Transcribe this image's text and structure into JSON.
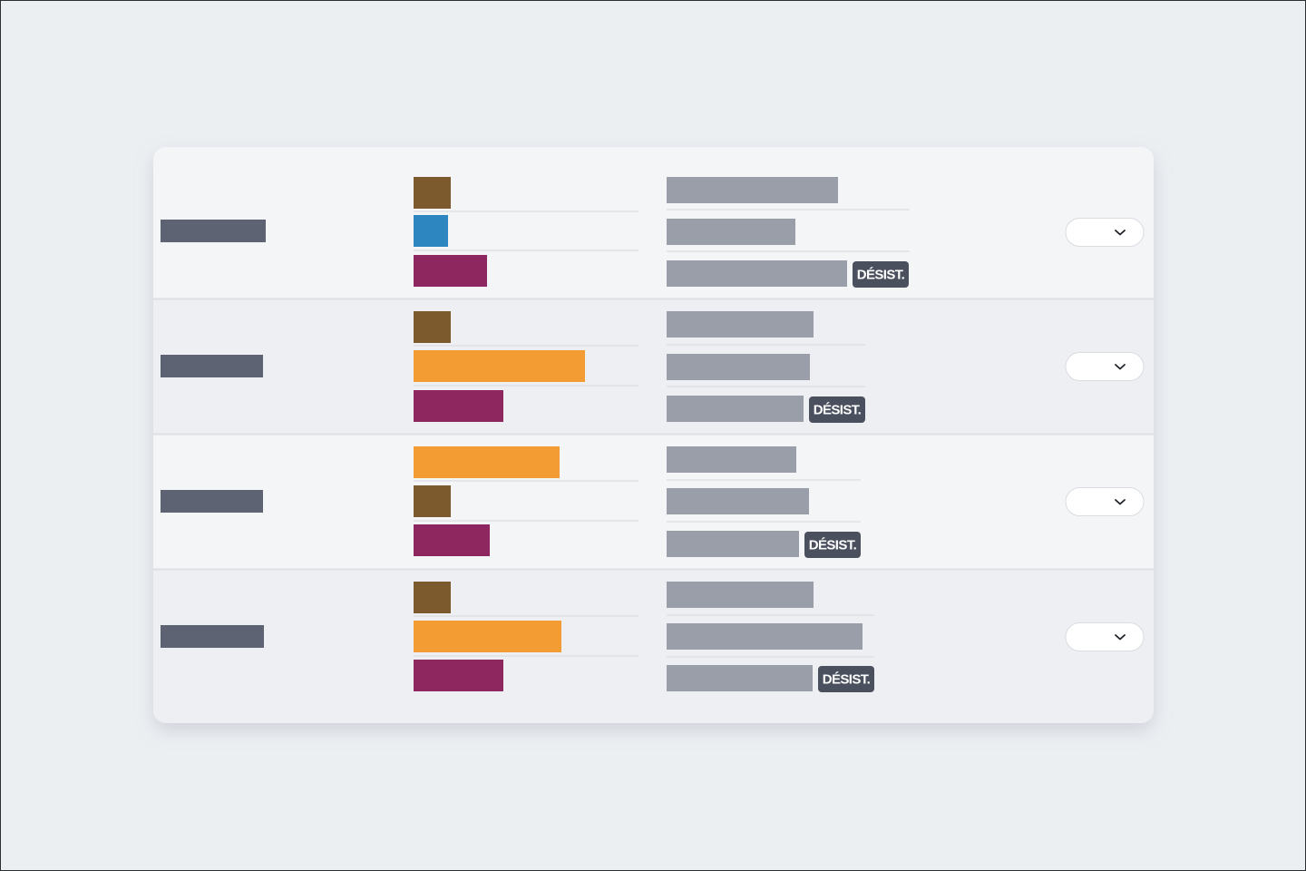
{
  "rows": [
    {
      "badge": "DÉSIST."
    },
    {
      "badge": "DÉSIST."
    },
    {
      "badge": "DÉSIST."
    },
    {
      "badge": "DÉSIST."
    }
  ]
}
